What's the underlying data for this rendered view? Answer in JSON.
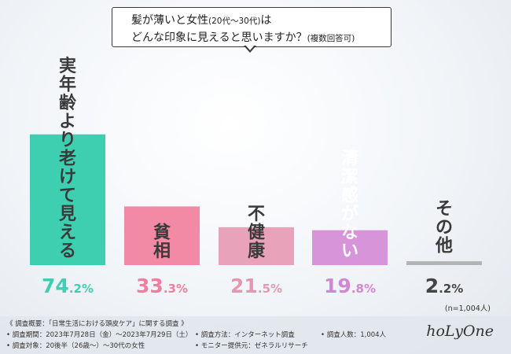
{
  "question": {
    "line1": "髪が薄いと女性",
    "line1_small": "(20代〜30代)",
    "line1_end": "は",
    "line2": "どんな印象に見えると思いますか？",
    "line2_small": "(複数回答可)"
  },
  "chart_data": {
    "type": "bar",
    "categories": [
      "実年齢より老けて見える",
      "貧相",
      "不健康",
      "清潔感がない",
      "その他"
    ],
    "values": [
      74.2,
      33.3,
      21.5,
      19.8,
      2.2
    ],
    "value_labels": [
      {
        "num": "74",
        "dec": ".2%"
      },
      {
        "num": "33",
        "dec": ".3%"
      },
      {
        "num": "21",
        "dec": ".5%"
      },
      {
        "num": "19",
        "dec": ".8%"
      },
      {
        "num": "2",
        "dec": ".2%"
      }
    ],
    "colors": [
      "#3ecfb0",
      "#f28aa6",
      "#e8a2ba",
      "#d794d8",
      "#b2b4b6"
    ],
    "label_colors": [
      "#3ecfb0",
      "#f07e9c",
      "#e796b2",
      "#d088d2",
      "#444444"
    ],
    "bar_text_colors": [
      "#3a3a3a",
      "#3a3a3a",
      "#3a3a3a",
      "#ffffff",
      "#3a3a3a"
    ],
    "ylim": [
      0,
      100
    ],
    "note": "(n=1,004人)"
  },
  "footer": {
    "overview": "《 調査概要：「日常生活における頭皮ケア」に関する調査 》",
    "period": "• 調査期間：2023年7月28日（金）〜2023年7月29日（土）",
    "target": "• 調査対象：20後半（26歳〜）〜30代の女性",
    "method": "• 調査方法：インターネット調査",
    "provider": "• モニター提供元：ゼネラルリサーチ",
    "count": "• 調査人数：1,004人",
    "logo": "hoLyOne"
  }
}
